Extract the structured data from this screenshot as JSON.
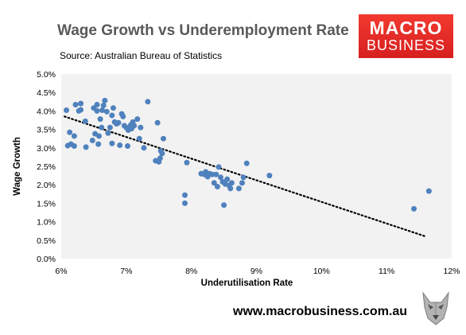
{
  "header": {
    "title": "Wage Growth vs Underemployment Rate",
    "source": "Source: Australian Bureau of Statistics"
  },
  "logo": {
    "line1": "MACRO",
    "line2": "BUSINESS"
  },
  "footer": {
    "url": "www.macrobusiness.com.au"
  },
  "colors": {
    "point": "#4f81bd",
    "plot_bg": "#f2f2f2",
    "trend": "#000000",
    "logo_red": "#e3231f"
  },
  "chart_data": {
    "type": "scatter",
    "title": "Wage Growth vs Underemployment Rate",
    "xlabel": "Underutilisation Rate",
    "ylabel": "Wage Growth",
    "xlim": [
      6,
      12
    ],
    "ylim": [
      0,
      5
    ],
    "x_ticks": [
      "6%",
      "7%",
      "8%",
      "9%",
      "10%",
      "11%",
      "12%"
    ],
    "y_ticks": [
      "0.0%",
      "0.5%",
      "1.0%",
      "1.5%",
      "2.0%",
      "2.5%",
      "3.0%",
      "3.5%",
      "4.0%",
      "4.5%",
      "5.0%"
    ],
    "grid": false,
    "legend": "none",
    "trendline": {
      "style": "dotted",
      "from": [
        6.05,
        3.85
      ],
      "to": [
        11.6,
        0.6
      ]
    },
    "points": [
      [
        6.08,
        4.02
      ],
      [
        6.13,
        3.42
      ],
      [
        6.1,
        3.06
      ],
      [
        6.15,
        3.1
      ],
      [
        6.2,
        3.05
      ],
      [
        6.2,
        3.32
      ],
      [
        6.22,
        4.17
      ],
      [
        6.27,
        4.0
      ],
      [
        6.3,
        4.03
      ],
      [
        6.3,
        4.2
      ],
      [
        6.37,
        3.72
      ],
      [
        6.38,
        3.02
      ],
      [
        6.48,
        3.2
      ],
      [
        6.5,
        4.08
      ],
      [
        6.52,
        3.38
      ],
      [
        6.55,
        4.17
      ],
      [
        6.55,
        4.0
      ],
      [
        6.57,
        3.1
      ],
      [
        6.58,
        3.32
      ],
      [
        6.6,
        3.78
      ],
      [
        6.62,
        3.55
      ],
      [
        6.63,
        4.02
      ],
      [
        6.65,
        4.15
      ],
      [
        6.67,
        4.28
      ],
      [
        6.7,
        3.98
      ],
      [
        6.72,
        3.4
      ],
      [
        6.75,
        3.55
      ],
      [
        6.78,
        3.12
      ],
      [
        6.78,
        3.88
      ],
      [
        6.8,
        4.08
      ],
      [
        6.82,
        3.7
      ],
      [
        6.85,
        3.65
      ],
      [
        6.88,
        3.68
      ],
      [
        6.9,
        3.07
      ],
      [
        6.93,
        3.92
      ],
      [
        6.95,
        3.85
      ],
      [
        6.97,
        3.6
      ],
      [
        7.0,
        3.55
      ],
      [
        7.02,
        3.05
      ],
      [
        7.03,
        3.48
      ],
      [
        7.05,
        3.55
      ],
      [
        7.07,
        3.62
      ],
      [
        7.08,
        3.52
      ],
      [
        7.1,
        3.7
      ],
      [
        7.12,
        3.6
      ],
      [
        7.17,
        3.78
      ],
      [
        7.2,
        3.25
      ],
      [
        7.22,
        3.55
      ],
      [
        7.27,
        3.0
      ],
      [
        7.33,
        4.25
      ],
      [
        7.45,
        2.65
      ],
      [
        7.48,
        3.68
      ],
      [
        7.5,
        2.62
      ],
      [
        7.52,
        2.72
      ],
      [
        7.53,
        2.92
      ],
      [
        7.55,
        2.85
      ],
      [
        7.57,
        3.25
      ],
      [
        7.9,
        1.72
      ],
      [
        7.9,
        1.5
      ],
      [
        7.93,
        2.6
      ],
      [
        8.15,
        2.3
      ],
      [
        8.2,
        2.28
      ],
      [
        8.22,
        2.35
      ],
      [
        8.25,
        2.22
      ],
      [
        8.28,
        2.3
      ],
      [
        8.32,
        2.28
      ],
      [
        8.35,
        2.05
      ],
      [
        8.38,
        2.28
      ],
      [
        8.4,
        1.95
      ],
      [
        8.42,
        2.48
      ],
      [
        8.45,
        2.2
      ],
      [
        8.48,
        2.08
      ],
      [
        8.5,
        1.45
      ],
      [
        8.52,
        2.02
      ],
      [
        8.55,
        2.15
      ],
      [
        8.58,
        1.98
      ],
      [
        8.6,
        1.9
      ],
      [
        8.62,
        2.05
      ],
      [
        8.73,
        1.9
      ],
      [
        8.78,
        2.05
      ],
      [
        8.8,
        2.2
      ],
      [
        8.85,
        2.58
      ],
      [
        9.2,
        2.25
      ],
      [
        11.42,
        1.35
      ],
      [
        11.65,
        1.83
      ]
    ]
  }
}
